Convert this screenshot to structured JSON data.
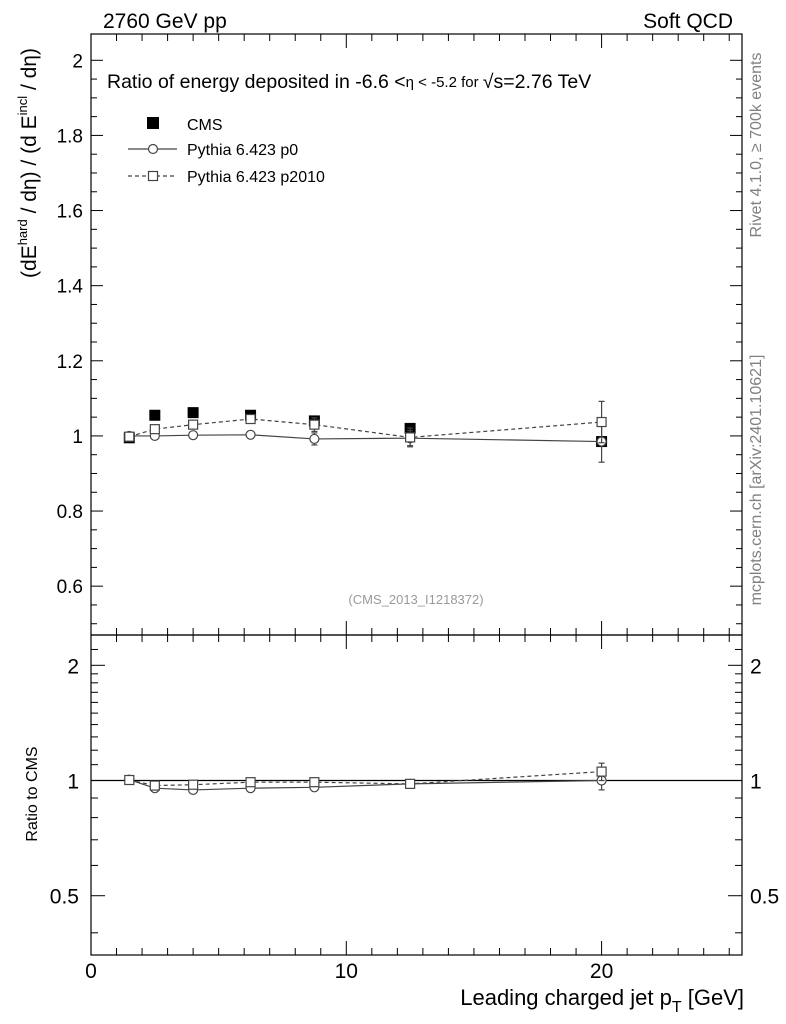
{
  "header": {
    "left": "2760 GeV pp",
    "right": "Soft QCD"
  },
  "side": {
    "rivet": "Rivet 4.1.0, ≥ 700k events",
    "mcplots": "mcplots.cern.ch [arXiv:2401.10621]"
  },
  "chart_data": [
    {
      "panel": "main",
      "type": "line",
      "title": "Ratio of energy deposited in -6.6 <η < -5.2 for √s=2.76 TeV",
      "title_parts": {
        "before": "Ratio of energy deposited in -6.6 <",
        "eta": "η < -5.2 for ",
        "sqrt": "√",
        "after": "s=2.76 TeV"
      },
      "ylabel": "(dE^hard / dη) / (d E^incl / dη)",
      "ylabel_parts": {
        "a": "(dE",
        "a_sup": "hard",
        "b": " / dη) / (d E",
        "b_sup": "incl",
        "c": " / dη)"
      },
      "xlim": [
        0,
        25.5
      ],
      "ylim": [
        0.47,
        2.07
      ],
      "yticks": [
        0.6,
        0.8,
        1,
        1.2,
        1.4,
        1.6,
        1.8,
        2
      ],
      "ytick_labels": [
        "0.6",
        "0.8",
        "1",
        "1.2",
        "1.4",
        "1.6",
        "1.8",
        "2"
      ],
      "watermark": "(CMS_2013_I1218372)",
      "series": [
        {
          "name": "CMS",
          "marker": "filled-square",
          "style": "points",
          "color": "#000000",
          "x": [
            1.5,
            2.5,
            4.0,
            6.25,
            8.75,
            12.5,
            20.0
          ],
          "y": [
            0.995,
            1.055,
            1.062,
            1.055,
            1.04,
            1.02,
            0.985
          ],
          "err": [
            0.005,
            0.004,
            0.004,
            0.004,
            0.004,
            0.005,
            0.01
          ]
        },
        {
          "name": "Pythia 6.423 p0",
          "marker": "open-circle",
          "style": "solid",
          "color": "#444444",
          "x": [
            1.5,
            2.5,
            4.0,
            6.25,
            8.75,
            12.5,
            20.0
          ],
          "y": [
            1.0,
            1.0,
            1.002,
            1.003,
            0.992,
            0.994,
            0.985
          ],
          "err": [
            0.004,
            0.004,
            0.004,
            0.004,
            0.016,
            0.02,
            0.055
          ]
        },
        {
          "name": "Pythia 6.423 p2010",
          "marker": "open-square",
          "style": "dashed",
          "color": "#444444",
          "x": [
            1.5,
            2.5,
            4.0,
            6.25,
            8.75,
            12.5,
            20.0
          ],
          "y": [
            0.998,
            1.018,
            1.03,
            1.045,
            1.03,
            0.996,
            1.037
          ],
          "err": [
            0.004,
            0.004,
            0.004,
            0.004,
            0.018,
            0.025,
            0.055
          ]
        }
      ]
    },
    {
      "panel": "ratio",
      "type": "line",
      "ylabel": "Ratio to CMS",
      "xlabel": "Leading charged jet p",
      "xlabel_sub": "T",
      "xlabel_unit": " [GeV]",
      "xlim": [
        0,
        25.5
      ],
      "ylim": [
        0.35,
        2.4
      ],
      "yscale": "log",
      "xticks": [
        0,
        10,
        20
      ],
      "xtick_labels": [
        "0",
        "10",
        "20"
      ],
      "yticks": [
        0.5,
        1,
        2
      ],
      "ytick_labels": [
        "0.5",
        "1",
        "2"
      ],
      "reference": 1,
      "series": [
        {
          "name": "Pythia 6.423 p0",
          "marker": "open-circle",
          "style": "solid",
          "x": [
            1.5,
            2.5,
            4.0,
            6.25,
            8.75,
            12.5,
            20.0
          ],
          "y": [
            1.005,
            0.955,
            0.945,
            0.955,
            0.96,
            0.98,
            1.0
          ],
          "err": [
            0.005,
            0.006,
            0.006,
            0.006,
            0.015,
            0.02,
            0.055
          ]
        },
        {
          "name": "Pythia 6.423 p2010",
          "marker": "open-square",
          "style": "dashed",
          "x": [
            1.5,
            2.5,
            4.0,
            6.25,
            8.75,
            12.5,
            20.0
          ],
          "y": [
            1.003,
            0.97,
            0.975,
            0.99,
            0.99,
            0.98,
            1.055
          ],
          "err": [
            0.005,
            0.006,
            0.006,
            0.006,
            0.018,
            0.025,
            0.055
          ]
        }
      ]
    }
  ]
}
